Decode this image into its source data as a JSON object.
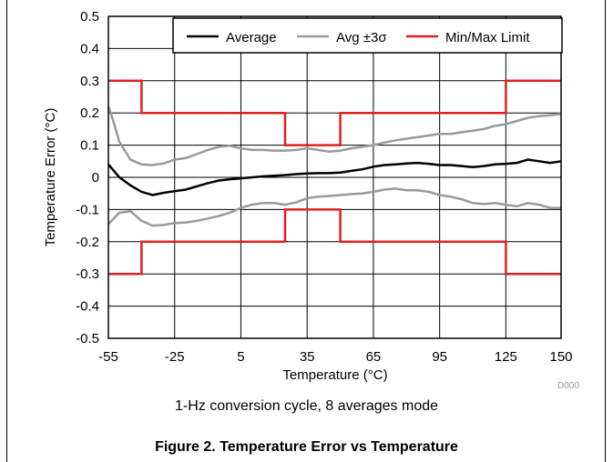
{
  "chart_data": {
    "type": "line",
    "xlabel": "Temperature (°C)",
    "ylabel": "Temperature Error (°C)",
    "xlim": [
      -55,
      150
    ],
    "ylim": [
      -0.5,
      0.5
    ],
    "x_ticks": [
      -55,
      -25,
      5,
      35,
      65,
      95,
      125,
      150
    ],
    "y_ticks": [
      -0.5,
      -0.4,
      -0.3,
      -0.2,
      -0.1,
      0,
      0.1,
      0.2,
      0.3,
      0.4,
      0.5
    ],
    "x_tick_labels": [
      "-55",
      "-25",
      "5",
      "35",
      "65",
      "95",
      "125",
      "150"
    ],
    "y_tick_labels": [
      "-0.5",
      "-0.4",
      "-0.3",
      "-0.2",
      "-0.1",
      "0",
      "0.1",
      "0.2",
      "0.3",
      "0.4",
      "0.5"
    ],
    "grid": true,
    "legend_position": "top-right",
    "watermark": "D000",
    "series": [
      {
        "name": "Average",
        "color": "#000000",
        "x": [
          -55,
          -50,
          -45,
          -40,
          -35,
          -30,
          -25,
          -20,
          -15,
          -10,
          -5,
          0,
          5,
          10,
          15,
          20,
          25,
          30,
          35,
          40,
          45,
          50,
          55,
          60,
          65,
          70,
          75,
          80,
          85,
          90,
          95,
          100,
          105,
          110,
          115,
          120,
          125,
          130,
          135,
          140,
          145,
          150
        ],
        "y": [
          0.04,
          0.0,
          -0.025,
          -0.045,
          -0.055,
          -0.048,
          -0.043,
          -0.038,
          -0.028,
          -0.018,
          -0.01,
          -0.006,
          -0.003,
          0.0,
          0.003,
          0.005,
          0.007,
          0.01,
          0.012,
          0.013,
          0.013,
          0.015,
          0.02,
          0.025,
          0.033,
          0.038,
          0.04,
          0.043,
          0.045,
          0.042,
          0.038,
          0.038,
          0.035,
          0.032,
          0.035,
          0.04,
          0.042,
          0.045,
          0.055,
          0.05,
          0.045,
          0.05
        ]
      },
      {
        "name": "Avg ±3σ",
        "color": "#999999",
        "x": [
          -55,
          -53,
          -50,
          -45,
          -40,
          -35,
          -30,
          -25,
          -20,
          -15,
          -10,
          -5,
          0,
          5,
          10,
          15,
          20,
          25,
          30,
          35,
          40,
          45,
          50,
          55,
          60,
          65,
          70,
          75,
          80,
          85,
          90,
          95,
          100,
          105,
          110,
          115,
          120,
          125,
          130,
          135,
          140,
          145,
          150
        ],
        "y": [
          0.22,
          0.18,
          0.11,
          0.055,
          0.04,
          0.038,
          0.043,
          0.055,
          0.06,
          0.072,
          0.085,
          0.095,
          0.098,
          0.09,
          0.085,
          0.085,
          0.083,
          0.083,
          0.085,
          0.09,
          0.085,
          0.08,
          0.083,
          0.09,
          0.095,
          0.1,
          0.108,
          0.115,
          0.12,
          0.125,
          0.13,
          0.135,
          0.135,
          0.14,
          0.145,
          0.15,
          0.16,
          0.165,
          0.175,
          0.185,
          0.19,
          0.193,
          0.197
        ]
      },
      {
        "name": "",
        "color": "#999999",
        "x": [
          -55,
          -50,
          -45,
          -40,
          -35,
          -30,
          -25,
          -20,
          -15,
          -10,
          -5,
          0,
          5,
          10,
          15,
          20,
          25,
          30,
          35,
          40,
          45,
          50,
          55,
          60,
          65,
          70,
          75,
          80,
          85,
          90,
          95,
          100,
          105,
          110,
          115,
          120,
          125,
          130,
          135,
          140,
          145,
          150
        ],
        "y": [
          -0.145,
          -0.11,
          -0.105,
          -0.135,
          -0.15,
          -0.148,
          -0.142,
          -0.14,
          -0.135,
          -0.128,
          -0.12,
          -0.11,
          -0.095,
          -0.085,
          -0.08,
          -0.08,
          -0.085,
          -0.078,
          -0.065,
          -0.06,
          -0.058,
          -0.055,
          -0.052,
          -0.05,
          -0.045,
          -0.038,
          -0.035,
          -0.04,
          -0.04,
          -0.045,
          -0.055,
          -0.06,
          -0.068,
          -0.08,
          -0.083,
          -0.08,
          -0.085,
          -0.09,
          -0.08,
          -0.085,
          -0.095,
          -0.095
        ]
      },
      {
        "name": "Min/Max Limit",
        "color": "#e02020",
        "x": [
          -55,
          -40,
          -40,
          25,
          25,
          50,
          50,
          125,
          125,
          150
        ],
        "y": [
          0.3,
          0.3,
          0.2,
          0.2,
          0.1,
          0.1,
          0.2,
          0.2,
          0.3,
          0.3
        ]
      },
      {
        "name": "",
        "color": "#e02020",
        "x": [
          -55,
          -40,
          -40,
          25,
          25,
          50,
          50,
          125,
          125,
          150
        ],
        "y": [
          -0.3,
          -0.3,
          -0.2,
          -0.2,
          -0.1,
          -0.1,
          -0.2,
          -0.2,
          -0.3,
          -0.3
        ]
      }
    ]
  },
  "legend": {
    "average": "Average",
    "avg3sigma": "Avg ±3σ",
    "minmax": "Min/Max Limit"
  },
  "captions": {
    "sub": "1-Hz conversion cycle, 8 averages mode",
    "figure": "Figure 2. Temperature Error vs Temperature"
  }
}
